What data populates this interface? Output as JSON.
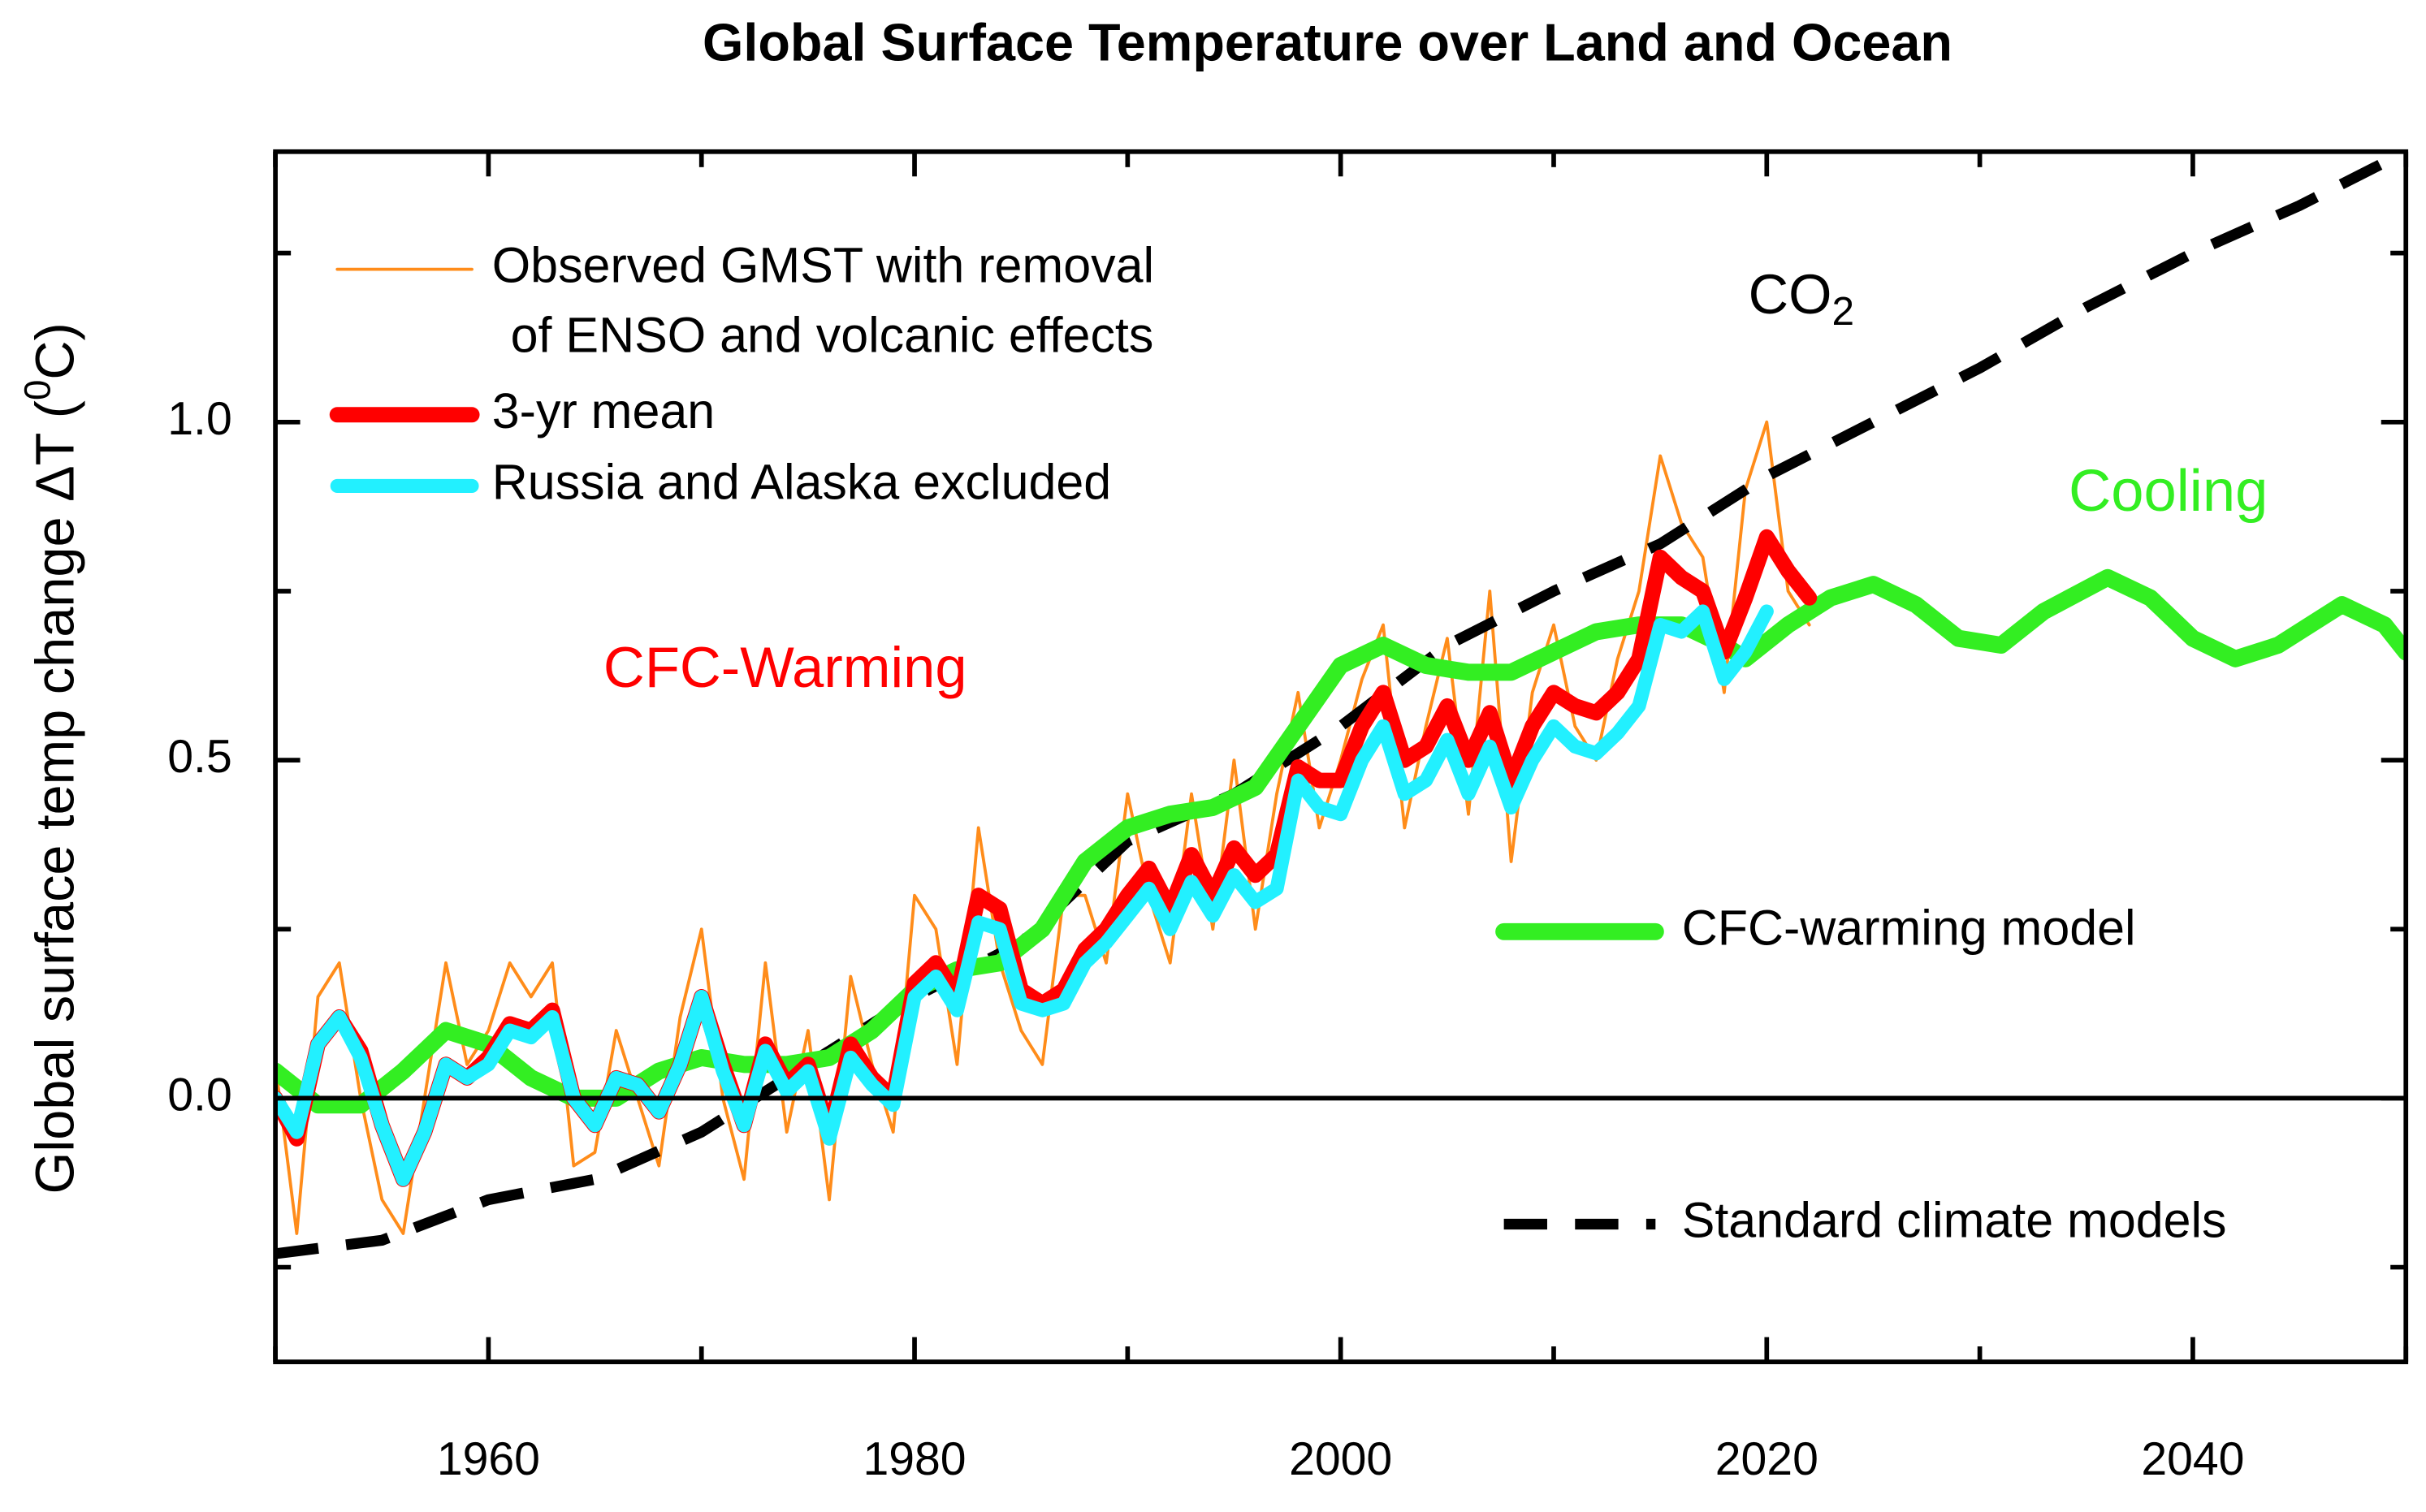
{
  "chart_data": {
    "type": "line",
    "title": "Global Surface Temperature over Land and Ocean",
    "ylabel": {
      "text": "Global surface temp change ΔT (",
      "sup": "0",
      "end": "C)"
    },
    "xlim": [
      1950,
      2050
    ],
    "xticks": [
      1960,
      1980,
      2000,
      2020,
      2040
    ],
    "xminor": [
      1950,
      1970,
      1990,
      2010,
      2030,
      2050
    ],
    "ylim": [
      -0.39,
      1.4
    ],
    "yticks": [
      {
        "value": 0,
        "label": "0.0"
      },
      {
        "value": 0.5,
        "label": "0.5"
      },
      {
        "value": 1,
        "label": "1.0"
      }
    ],
    "yminor": [
      -0.25,
      0.25,
      0.75,
      1.25
    ],
    "zero_line": true,
    "annotations": [
      {
        "text": "CFC-Warming",
        "color": "#ff0000"
      },
      {
        "text": "CO",
        "sub": "2",
        "color": "#000000"
      },
      {
        "text": "Cooling",
        "color": "#33ee22"
      }
    ],
    "series": [
      {
        "name": "Observed GMST with removal\nof ENSO and volcanic effects",
        "color": "#ff8c1a",
        "width": 2,
        "x": [
          1950,
          1951,
          1952,
          1953,
          1954,
          1955,
          1956,
          1957,
          1958,
          1959,
          1960,
          1961,
          1962,
          1963,
          1964,
          1965,
          1966,
          1967,
          1968,
          1969,
          1970,
          1971,
          1972,
          1973,
          1974,
          1975,
          1976,
          1977,
          1978,
          1979,
          1980,
          1981,
          1982,
          1983,
          1984,
          1985,
          1986,
          1987,
          1988,
          1989,
          1990,
          1991,
          1992,
          1993,
          1994,
          1995,
          1996,
          1997,
          1998,
          1999,
          2000,
          2001,
          2002,
          2003,
          2004,
          2005,
          2006,
          2007,
          2008,
          2009,
          2010,
          2011,
          2012,
          2013,
          2014,
          2015,
          2016,
          2017,
          2018,
          2019,
          2020,
          2021,
          2022
        ],
        "values": [
          0.05,
          -0.2,
          0.15,
          0.2,
          0.0,
          -0.15,
          -0.2,
          0.0,
          0.2,
          0.05,
          0.1,
          0.2,
          0.15,
          0.2,
          -0.1,
          -0.08,
          0.1,
          0.0,
          -0.1,
          0.12,
          0.25,
          0.0,
          -0.12,
          0.2,
          -0.05,
          0.1,
          -0.15,
          0.18,
          0.05,
          -0.05,
          0.3,
          0.25,
          0.05,
          0.4,
          0.2,
          0.1,
          0.05,
          0.3,
          0.3,
          0.2,
          0.45,
          0.3,
          0.2,
          0.45,
          0.25,
          0.5,
          0.25,
          0.45,
          0.6,
          0.4,
          0.5,
          0.62,
          0.7,
          0.4,
          0.55,
          0.68,
          0.42,
          0.75,
          0.35,
          0.6,
          0.7,
          0.55,
          0.5,
          0.65,
          0.75,
          0.95,
          0.85,
          0.8,
          0.6,
          0.9,
          1.0,
          0.75,
          0.7
        ]
      },
      {
        "name": "Standard climate models",
        "color": "#000000",
        "width": 7,
        "dashed": true,
        "x": [
          1950,
          1955,
          1960,
          1965,
          1970,
          1975,
          1980,
          1985,
          1990,
          1995,
          2000,
          2005,
          2010,
          2015,
          2020,
          2025,
          2030,
          2035,
          2040,
          2045,
          2050
        ],
        "values": [
          -0.23,
          -0.21,
          -0.15,
          -0.12,
          -0.05,
          0.05,
          0.15,
          0.23,
          0.38,
          0.45,
          0.55,
          0.67,
          0.75,
          0.82,
          0.92,
          1.0,
          1.08,
          1.17,
          1.25,
          1.32,
          1.4
        ]
      },
      {
        "name": "CFC-warming model",
        "color": "#33ee22",
        "width": 11,
        "x": [
          1950,
          1952,
          1954,
          1956,
          1958,
          1960,
          1962,
          1964,
          1966,
          1968,
          1970,
          1972,
          1974,
          1976,
          1978,
          1980,
          1982,
          1984,
          1986,
          1988,
          1990,
          1992,
          1994,
          1996,
          1998,
          2000,
          2002,
          2004,
          2006,
          2008,
          2010,
          2012,
          2014,
          2016,
          2018,
          2019,
          2021,
          2023,
          2025,
          2027,
          2029,
          2031,
          2033,
          2036,
          2038,
          2040,
          2042,
          2044,
          2047,
          2049,
          2050
        ],
        "values": [
          0.04,
          -0.01,
          -0.01,
          0.04,
          0.1,
          0.08,
          0.03,
          0.0,
          0.0,
          0.04,
          0.06,
          0.05,
          0.05,
          0.06,
          0.1,
          0.16,
          0.19,
          0.2,
          0.25,
          0.35,
          0.4,
          0.42,
          0.43,
          0.46,
          0.55,
          0.64,
          0.67,
          0.64,
          0.63,
          0.63,
          0.66,
          0.69,
          0.7,
          0.7,
          0.67,
          0.65,
          0.7,
          0.74,
          0.76,
          0.73,
          0.68,
          0.67,
          0.72,
          0.77,
          0.74,
          0.68,
          0.65,
          0.67,
          0.73,
          0.7,
          0.66
        ]
      },
      {
        "name": "3-yr mean",
        "color": "#ff0000",
        "width": 10,
        "x": [
          1950,
          1951,
          1952,
          1953,
          1954,
          1955,
          1956,
          1957,
          1958,
          1959,
          1960,
          1961,
          1962,
          1963,
          1964,
          1965,
          1966,
          1967,
          1968,
          1969,
          1970,
          1971,
          1972,
          1973,
          1974,
          1975,
          1976,
          1977,
          1978,
          1979,
          1980,
          1981,
          1982,
          1983,
          1984,
          1985,
          1986,
          1987,
          1988,
          1989,
          1990,
          1991,
          1992,
          1993,
          1994,
          1995,
          1996,
          1997,
          1998,
          1999,
          2000,
          2001,
          2002,
          2003,
          2004,
          2005,
          2006,
          2007,
          2008,
          2009,
          2010,
          2011,
          2012,
          2013,
          2014,
          2015,
          2016,
          2017,
          2018,
          2019,
          2020,
          2021,
          2022
        ],
        "values": [
          0.0,
          -0.06,
          0.08,
          0.12,
          0.07,
          -0.04,
          -0.12,
          -0.05,
          0.05,
          0.03,
          0.06,
          0.11,
          0.1,
          0.13,
          0.0,
          -0.04,
          0.03,
          0.02,
          -0.02,
          0.05,
          0.15,
          0.05,
          -0.04,
          0.08,
          0.02,
          0.05,
          -0.05,
          0.08,
          0.03,
          0.0,
          0.17,
          0.2,
          0.15,
          0.3,
          0.28,
          0.16,
          0.14,
          0.16,
          0.22,
          0.25,
          0.3,
          0.34,
          0.28,
          0.36,
          0.3,
          0.37,
          0.33,
          0.36,
          0.49,
          0.47,
          0.47,
          0.55,
          0.6,
          0.5,
          0.52,
          0.58,
          0.5,
          0.57,
          0.47,
          0.55,
          0.6,
          0.58,
          0.57,
          0.6,
          0.65,
          0.8,
          0.77,
          0.75,
          0.66,
          0.74,
          0.83,
          0.78,
          0.74
        ]
      },
      {
        "name": "Russia and Alaska excluded",
        "color": "#22f0ff",
        "width": 9,
        "x": [
          1950,
          1951,
          1952,
          1953,
          1954,
          1955,
          1956,
          1957,
          1958,
          1959,
          1960,
          1961,
          1962,
          1963,
          1964,
          1965,
          1966,
          1967,
          1968,
          1969,
          1970,
          1971,
          1972,
          1973,
          1974,
          1975,
          1976,
          1977,
          1978,
          1979,
          1980,
          1981,
          1982,
          1983,
          1984,
          1985,
          1986,
          1987,
          1988,
          1989,
          1990,
          1991,
          1992,
          1993,
          1994,
          1995,
          1996,
          1997,
          1998,
          1999,
          2000,
          2001,
          2002,
          2003,
          2004,
          2005,
          2006,
          2007,
          2008,
          2009,
          2010,
          2011,
          2012,
          2013,
          2014,
          2015,
          2016,
          2017,
          2018,
          2019,
          2020
        ],
        "values": [
          0.0,
          -0.05,
          0.08,
          0.12,
          0.06,
          -0.04,
          -0.12,
          -0.05,
          0.05,
          0.03,
          0.05,
          0.1,
          0.09,
          0.12,
          0.0,
          -0.04,
          0.03,
          0.02,
          -0.02,
          0.05,
          0.15,
          0.04,
          -0.04,
          0.07,
          0.01,
          0.04,
          -0.06,
          0.06,
          0.02,
          -0.01,
          0.15,
          0.18,
          0.13,
          0.26,
          0.25,
          0.14,
          0.13,
          0.14,
          0.2,
          0.23,
          0.27,
          0.31,
          0.25,
          0.32,
          0.27,
          0.33,
          0.29,
          0.31,
          0.47,
          0.43,
          0.42,
          0.5,
          0.55,
          0.45,
          0.47,
          0.53,
          0.45,
          0.52,
          0.43,
          0.5,
          0.55,
          0.52,
          0.51,
          0.54,
          0.58,
          0.7,
          0.69,
          0.72,
          0.62,
          0.66,
          0.72
        ]
      }
    ]
  }
}
